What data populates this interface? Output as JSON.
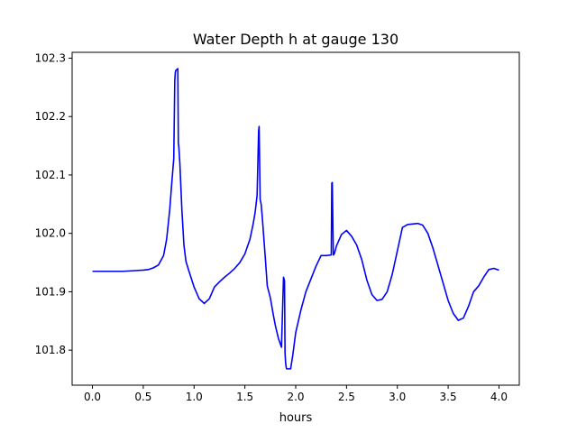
{
  "chart_data": {
    "type": "line",
    "title": "Water Depth h at gauge 130",
    "xlabel": "hours",
    "ylabel": "",
    "xlim": [
      -0.2,
      4.2
    ],
    "ylim": [
      101.74,
      102.31
    ],
    "xticks": [
      0.0,
      0.5,
      1.0,
      1.5,
      2.0,
      2.5,
      3.0,
      3.5,
      4.0
    ],
    "xtick_labels": [
      "0.0",
      "0.5",
      "1.0",
      "1.5",
      "2.0",
      "2.5",
      "3.0",
      "3.5",
      "4.0"
    ],
    "yticks": [
      101.8,
      101.9,
      102.0,
      102.1,
      102.2,
      102.3
    ],
    "ytick_labels": [
      "101.8",
      "101.9",
      "102.0",
      "102.1",
      "102.2",
      "102.3"
    ],
    "grid": false,
    "series": [
      {
        "color": "#0000ff",
        "x": [
          0.0,
          0.1,
          0.2,
          0.3,
          0.4,
          0.5,
          0.55,
          0.6,
          0.65,
          0.7,
          0.73,
          0.76,
          0.78,
          0.8,
          0.81,
          0.815,
          0.82,
          0.84,
          0.845,
          0.85,
          0.86,
          0.88,
          0.9,
          0.92,
          0.95,
          1.0,
          1.05,
          1.1,
          1.15,
          1.2,
          1.25,
          1.3,
          1.35,
          1.4,
          1.45,
          1.5,
          1.55,
          1.58,
          1.6,
          1.62,
          1.635,
          1.64,
          1.65,
          1.66,
          1.67,
          1.7,
          1.72,
          1.75,
          1.78,
          1.8,
          1.83,
          1.86,
          1.88,
          1.89,
          1.895,
          1.9,
          1.905,
          1.91,
          1.95,
          1.97,
          2.0,
          2.05,
          2.1,
          2.15,
          2.2,
          2.25,
          2.3,
          2.35,
          2.355,
          2.36,
          2.37,
          2.38,
          2.4,
          2.45,
          2.5,
          2.55,
          2.6,
          2.65,
          2.7,
          2.75,
          2.8,
          2.85,
          2.9,
          2.95,
          3.0,
          3.05,
          3.1,
          3.15,
          3.2,
          3.25,
          3.3,
          3.35,
          3.4,
          3.45,
          3.5,
          3.55,
          3.6,
          3.65,
          3.7,
          3.75,
          3.8,
          3.85,
          3.9,
          3.95,
          4.0
        ],
        "y": [
          101.935,
          101.935,
          101.935,
          101.935,
          101.936,
          101.937,
          101.938,
          101.941,
          101.946,
          101.962,
          101.99,
          102.04,
          102.085,
          102.128,
          102.26,
          102.275,
          102.279,
          102.282,
          102.155,
          102.148,
          102.12,
          102.04,
          101.98,
          101.952,
          101.935,
          101.908,
          101.888,
          101.88,
          101.888,
          101.908,
          101.917,
          101.925,
          101.932,
          101.94,
          101.95,
          101.965,
          101.99,
          102.015,
          102.035,
          102.065,
          102.175,
          102.183,
          102.058,
          102.05,
          102.03,
          101.96,
          101.91,
          101.89,
          101.86,
          101.842,
          101.82,
          101.805,
          101.925,
          101.919,
          101.795,
          101.78,
          101.772,
          101.768,
          101.768,
          101.79,
          101.83,
          101.868,
          101.9,
          101.922,
          101.944,
          101.962,
          101.962,
          101.963,
          102.086,
          102.087,
          101.963,
          101.965,
          101.978,
          101.998,
          102.005,
          101.995,
          101.98,
          101.955,
          101.92,
          101.895,
          101.885,
          101.887,
          101.9,
          101.93,
          101.97,
          102.01,
          102.015,
          102.016,
          102.017,
          102.014,
          102.0,
          101.975,
          101.945,
          101.915,
          101.885,
          101.863,
          101.851,
          101.855,
          101.875,
          101.9,
          101.91,
          101.925,
          101.938,
          101.94,
          101.937
        ]
      }
    ]
  }
}
